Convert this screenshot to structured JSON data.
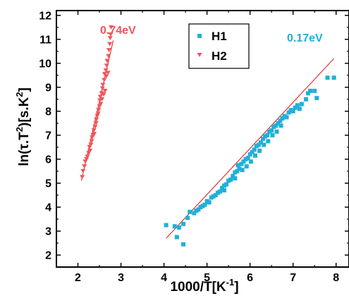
{
  "chart_data": {
    "type": "scatter",
    "xlabel": "1000/T[K",
    "xlabel_sup": "-1",
    "xlabel_end": "]",
    "ylabel": "ln(τ.T",
    "ylabel_sup": "2",
    "ylabel_mid": ")[s.K",
    "ylabel_sup2": "2",
    "ylabel_end": "]",
    "xlim": [
      1.5,
      8.3
    ],
    "ylim": [
      1.5,
      12.2
    ],
    "xticks": [
      2,
      3,
      4,
      5,
      6,
      7,
      8
    ],
    "yticks": [
      2,
      3,
      4,
      5,
      6,
      7,
      8,
      9,
      10,
      11,
      12
    ],
    "legend_position": "top-center",
    "colors": {
      "H1": "#1fb0d8",
      "H2": "#f2545b",
      "fit": "#e01010",
      "axis": "#000000"
    },
    "series": [
      {
        "name": "H1",
        "marker": "square",
        "annotation": "0.17eV",
        "fit": {
          "x": [
            4.05,
            7.95
          ],
          "y": [
            2.7,
            10.2
          ]
        },
        "points": [
          [
            4.05,
            3.25
          ],
          [
            4.25,
            3.2
          ],
          [
            4.3,
            2.75
          ],
          [
            4.35,
            3.15
          ],
          [
            4.45,
            2.45
          ],
          [
            4.45,
            3.3
          ],
          [
            4.55,
            3.55
          ],
          [
            4.6,
            3.8
          ],
          [
            4.7,
            3.75
          ],
          [
            4.75,
            3.85
          ],
          [
            4.8,
            3.9
          ],
          [
            4.85,
            4.0
          ],
          [
            4.9,
            4.05
          ],
          [
            4.95,
            4.1
          ],
          [
            5.0,
            4.25
          ],
          [
            5.05,
            4.2
          ],
          [
            5.1,
            4.4
          ],
          [
            5.15,
            4.45
          ],
          [
            5.2,
            4.5
          ],
          [
            5.25,
            4.6
          ],
          [
            5.3,
            4.65
          ],
          [
            5.35,
            4.8
          ],
          [
            5.4,
            4.9
          ],
          [
            5.4,
            4.7
          ],
          [
            5.45,
            4.95
          ],
          [
            5.5,
            5.1
          ],
          [
            5.55,
            5.15
          ],
          [
            5.6,
            5.3
          ],
          [
            5.65,
            5.45
          ],
          [
            5.65,
            5.2
          ],
          [
            5.7,
            5.5
          ],
          [
            5.72,
            5.75
          ],
          [
            5.75,
            5.6
          ],
          [
            5.8,
            5.8
          ],
          [
            5.82,
            5.55
          ],
          [
            5.85,
            5.9
          ],
          [
            5.9,
            6.0
          ],
          [
            5.92,
            5.7
          ],
          [
            5.95,
            6.05
          ],
          [
            6.0,
            6.2
          ],
          [
            6.02,
            5.9
          ],
          [
            6.05,
            6.3
          ],
          [
            6.1,
            6.4
          ],
          [
            6.12,
            6.15
          ],
          [
            6.15,
            6.55
          ],
          [
            6.2,
            6.6
          ],
          [
            6.22,
            6.35
          ],
          [
            6.25,
            6.7
          ],
          [
            6.3,
            6.85
          ],
          [
            6.32,
            6.6
          ],
          [
            6.35,
            6.95
          ],
          [
            6.4,
            7.0
          ],
          [
            6.42,
            6.75
          ],
          [
            6.45,
            7.15
          ],
          [
            6.5,
            7.2
          ],
          [
            6.52,
            7.0
          ],
          [
            6.55,
            7.35
          ],
          [
            6.6,
            7.4
          ],
          [
            6.62,
            7.15
          ],
          [
            6.65,
            7.5
          ],
          [
            6.7,
            7.6
          ],
          [
            6.72,
            7.4
          ],
          [
            6.75,
            7.7
          ],
          [
            6.8,
            7.8
          ],
          [
            6.85,
            7.75
          ],
          [
            6.9,
            7.95
          ],
          [
            6.95,
            8.05
          ],
          [
            7.0,
            8.0
          ],
          [
            7.05,
            8.15
          ],
          [
            7.1,
            8.25
          ],
          [
            7.15,
            8.1
          ],
          [
            7.2,
            8.3
          ],
          [
            7.3,
            8.5
          ],
          [
            7.35,
            8.75
          ],
          [
            7.4,
            8.85
          ],
          [
            7.5,
            8.85
          ],
          [
            7.55,
            8.55
          ],
          [
            7.8,
            9.4
          ],
          [
            7.95,
            9.4
          ]
        ]
      },
      {
        "name": "H2",
        "marker": "triangle-down",
        "annotation": "0.74eV",
        "fit": {
          "x": [
            2.08,
            2.82
          ],
          "y": [
            5.1,
            10.95
          ]
        },
        "points": [
          [
            2.1,
            5.25
          ],
          [
            2.12,
            5.5
          ],
          [
            2.15,
            5.7
          ],
          [
            2.17,
            5.9
          ],
          [
            2.2,
            6.0
          ],
          [
            2.22,
            6.1
          ],
          [
            2.25,
            6.25
          ],
          [
            2.27,
            6.5
          ],
          [
            2.28,
            6.35
          ],
          [
            2.3,
            6.6
          ],
          [
            2.32,
            6.75
          ],
          [
            2.33,
            6.9
          ],
          [
            2.35,
            7.0
          ],
          [
            2.37,
            7.2
          ],
          [
            2.38,
            7.05
          ],
          [
            2.4,
            7.35
          ],
          [
            2.42,
            7.5
          ],
          [
            2.43,
            7.65
          ],
          [
            2.45,
            7.8
          ],
          [
            2.47,
            7.9
          ],
          [
            2.48,
            8.05
          ],
          [
            2.5,
            8.2
          ],
          [
            2.51,
            8.45
          ],
          [
            2.52,
            8.6
          ],
          [
            2.53,
            8.3
          ],
          [
            2.55,
            8.75
          ],
          [
            2.56,
            8.5
          ],
          [
            2.57,
            8.95
          ],
          [
            2.58,
            9.1
          ],
          [
            2.6,
            8.7
          ],
          [
            2.61,
            9.3
          ],
          [
            2.62,
            9.55
          ],
          [
            2.63,
            8.85
          ],
          [
            2.65,
            9.7
          ],
          [
            2.66,
            9.45
          ],
          [
            2.67,
            9.9
          ],
          [
            2.68,
            10.1
          ],
          [
            2.7,
            9.6
          ],
          [
            2.71,
            10.3
          ],
          [
            2.72,
            10.55
          ],
          [
            2.74,
            10.8
          ],
          [
            2.75,
            11.05
          ],
          [
            2.76,
            11.2
          ],
          [
            2.77,
            11.5
          ]
        ]
      }
    ]
  }
}
